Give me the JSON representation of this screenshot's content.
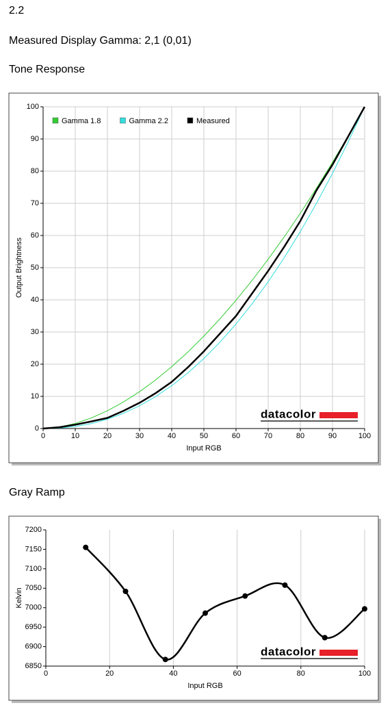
{
  "heading": "2.2",
  "gamma_note": "Measured Display Gamma: 2,1 (0,01)",
  "chart_data": [
    {
      "type": "line",
      "title": "Tone Response",
      "x_label": "Input RGB",
      "y_label": "Output Brightness",
      "watermark": "datacolor",
      "grid": "both",
      "legend": "top-left",
      "smooth": false,
      "xlim": [
        0,
        100
      ],
      "xticks": [
        0,
        10,
        20,
        30,
        40,
        50,
        60,
        70,
        80,
        90,
        100
      ],
      "ylim": [
        0,
        100
      ],
      "yticks": [
        0,
        10,
        20,
        30,
        40,
        50,
        60,
        70,
        80,
        90,
        100
      ],
      "x": [
        0,
        5,
        10,
        15,
        20,
        25,
        30,
        35,
        40,
        45,
        50,
        55,
        60,
        65,
        70,
        75,
        80,
        85,
        90,
        95,
        100
      ],
      "series": [
        {
          "name": "Gamma 1.8",
          "color": "#33cc33",
          "width": 1,
          "values": [
            0,
            0.46,
            1.58,
            3.29,
            5.52,
            8.25,
            11.45,
            15.11,
            19.22,
            23.76,
            28.72,
            34.09,
            39.87,
            46.05,
            52.62,
            59.58,
            66.92,
            74.64,
            82.73,
            91.18,
            100
          ]
        },
        {
          "name": "Gamma 2.2",
          "color": "#33dddd",
          "width": 1,
          "values": [
            0,
            0.14,
            0.63,
            1.54,
            2.9,
            4.74,
            7.08,
            9.93,
            13.32,
            17.26,
            21.76,
            26.84,
            32.5,
            38.76,
            45.62,
            53.11,
            61.21,
            69.94,
            79.31,
            89.33,
            100
          ]
        },
        {
          "name": "Measured",
          "color": "#000000",
          "width": 2.5,
          "values": [
            0,
            0.4,
            1.2,
            2.2,
            3.3,
            5.5,
            8,
            11,
            14.5,
            19,
            24,
            29.5,
            35,
            42,
            49,
            56.5,
            64.5,
            74,
            82,
            91,
            100
          ]
        }
      ]
    },
    {
      "type": "line",
      "title": "Gray Ramp",
      "x_label": "Input RGB",
      "y_label": "Kelvin",
      "watermark": "datacolor",
      "grid": "x",
      "smooth": true,
      "markers": true,
      "xlim": [
        0,
        100
      ],
      "xticks": [
        0,
        20,
        40,
        60,
        80,
        100
      ],
      "ylim": [
        6850,
        7200
      ],
      "yticks": [
        6850,
        6900,
        6950,
        7000,
        7050,
        7100,
        7150,
        7200
      ],
      "x": [
        12.5,
        25,
        37.5,
        50,
        62.5,
        75,
        87.5,
        100
      ],
      "series": [
        {
          "color": "#000000",
          "width": 2.5,
          "values": [
            7155,
            7042,
            6867,
            6986,
            7030,
            7058,
            6923,
            6997
          ]
        }
      ]
    }
  ]
}
